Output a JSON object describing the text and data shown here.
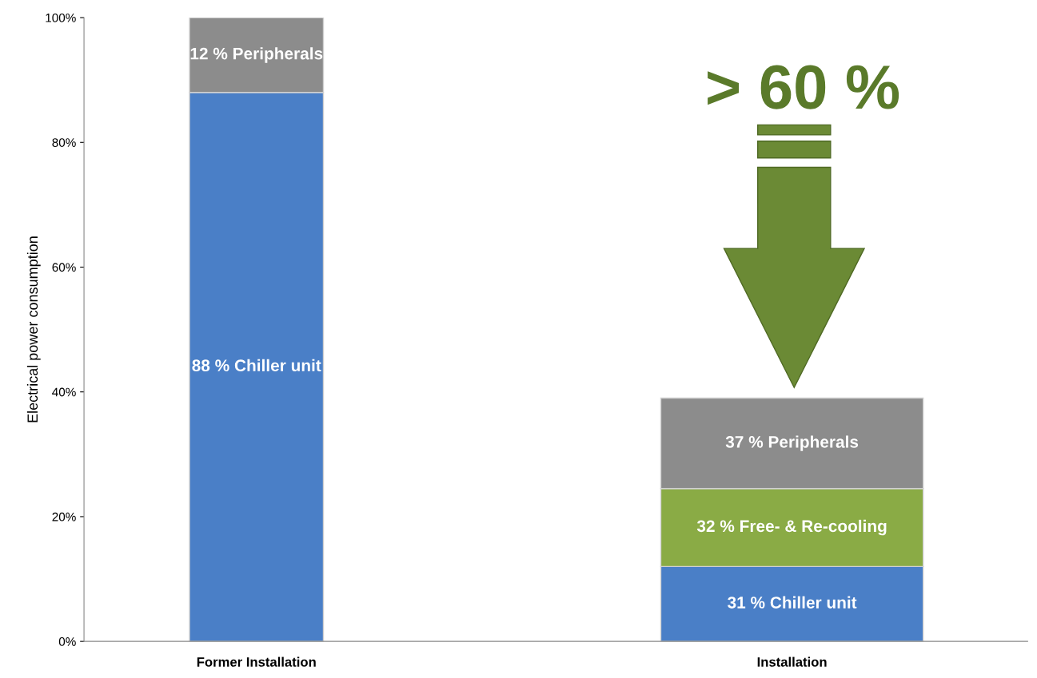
{
  "chart_data": {
    "type": "bar",
    "stacked": true,
    "ylabel": "Electrical power consumption",
    "categories": [
      "Former Installation",
      "Installation"
    ],
    "series": [
      {
        "color": "#4a7fc7",
        "values": [
          88,
          12
        ]
      },
      {
        "color": "#8aab45",
        "values": [
          null,
          12.5
        ]
      },
      {
        "color": "#8c8c8c",
        "values": [
          12,
          14.5
        ]
      }
    ],
    "ylim": [
      0,
      100
    ],
    "yticks": [
      {
        "value": 0,
        "label": "0%"
      },
      {
        "value": 20,
        "label": "20%"
      },
      {
        "value": 40,
        "label": "40%"
      },
      {
        "value": 60,
        "label": "60%"
      },
      {
        "value": 80,
        "label": "80%"
      },
      {
        "value": 100,
        "label": "100%"
      }
    ],
    "grid": false,
    "legend": false,
    "annotations": [
      "> 60 %",
      "88 % Chiller unit",
      "12 % Peripherals",
      "31 % Chiller unit",
      "32 % Free- & Re-cooling",
      "37 % Peripherals"
    ]
  }
}
